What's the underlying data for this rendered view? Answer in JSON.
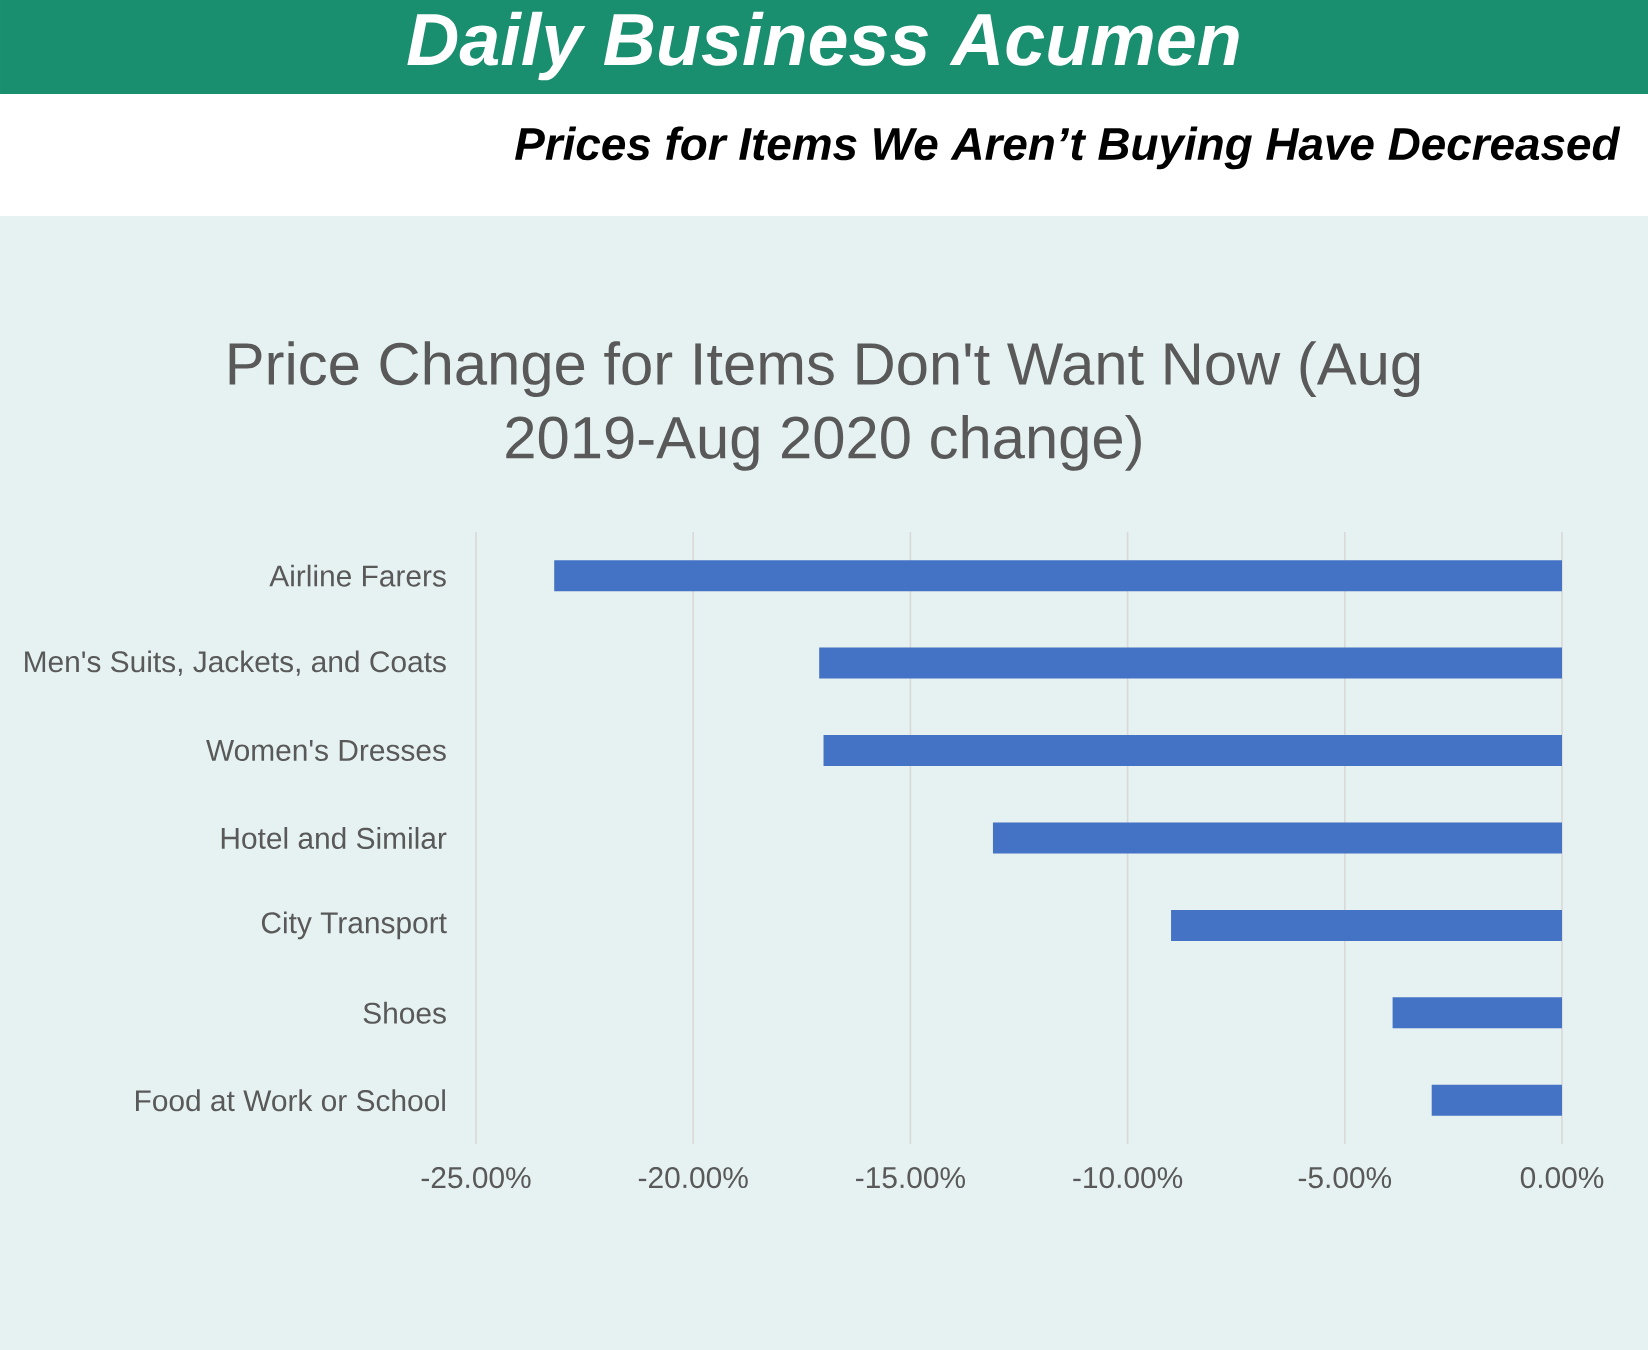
{
  "chart_data": {
    "type": "bar",
    "orientation": "horizontal",
    "title": "Price Change for Items Don't Want Now (Aug 2019-Aug 2020 change)",
    "subtitle": "Prices for Items We Aren’t Buying Have Decreased",
    "annotations": [
      "Daily Business Acumen"
    ],
    "categories": [
      "Airline Farers",
      "Men's Suits, Jackets, and Coats",
      "Women's Dresses",
      "Hotel and Similar",
      "City Transport",
      "Shoes",
      "Food at Work or School"
    ],
    "values": [
      -23.2,
      -17.1,
      -17.0,
      -13.1,
      -9.0,
      -3.9,
      -3.0
    ],
    "color": "#4472c4",
    "xlim": [
      -25,
      0
    ],
    "xticks": [
      {
        "value": -25,
        "label": "-25.00%"
      },
      {
        "value": -20,
        "label": "-20.00%"
      },
      {
        "value": -15,
        "label": "-15.00%"
      },
      {
        "value": -10,
        "label": "-10.00%"
      },
      {
        "value": -5,
        "label": "-5.00%"
      },
      {
        "value": 0,
        "label": "0.00%"
      }
    ],
    "grid": "x"
  }
}
